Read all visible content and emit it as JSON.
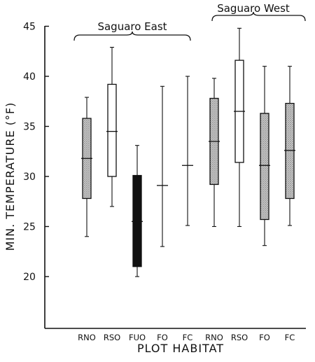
{
  "chart_data": {
    "type": "boxplot",
    "title": "",
    "xlabel": "PLOT  HABITAT",
    "ylabel": "MIN. TEMPERATURE (°F)",
    "ylim": [
      13,
      45
    ],
    "yticks": [
      20,
      25,
      30,
      35,
      40,
      45
    ],
    "grid": false,
    "groups": [
      {
        "label": "Saguaro   East",
        "categories": [
          0,
          4
        ]
      },
      {
        "label": "Saguaro West",
        "categories": [
          5,
          8
        ]
      }
    ],
    "categories": [
      "RNO",
      "RSO",
      "FUO",
      "FO",
      "FC",
      "RNO",
      "RSO",
      "FO",
      "FC"
    ],
    "series": [
      {
        "category": "RNO",
        "min": 24.0,
        "q1": 27.8,
        "median": 31.8,
        "q3": 35.8,
        "max": 37.9,
        "fill": "stippled"
      },
      {
        "category": "RSO",
        "min": 27.0,
        "q1": 30.0,
        "median": 34.5,
        "q3": 39.2,
        "max": 42.9,
        "fill": "white"
      },
      {
        "category": "FUO",
        "min": 20.0,
        "q1": 21.0,
        "median": 25.5,
        "q3": 30.1,
        "max": 33.1,
        "fill": "black"
      },
      {
        "category": "FO",
        "min": 23.0,
        "median": 29.1,
        "max": 39.0,
        "fill": "none"
      },
      {
        "category": "FC",
        "min": 25.1,
        "median": 31.1,
        "max": 40.0,
        "fill": "none"
      },
      {
        "category": "RNO",
        "min": 25.0,
        "q1": 29.2,
        "median": 33.5,
        "q3": 37.8,
        "max": 39.8,
        "fill": "stippled"
      },
      {
        "category": "RSO",
        "min": 25.0,
        "q1": 31.4,
        "median": 36.5,
        "q3": 41.6,
        "max": 44.8,
        "fill": "white"
      },
      {
        "category": "FO",
        "min": 23.1,
        "q1": 25.7,
        "median": 31.1,
        "q3": 36.3,
        "max": 41.0,
        "fill": "stippled"
      },
      {
        "category": "FC",
        "min": 25.1,
        "q1": 27.8,
        "median": 32.6,
        "q3": 37.3,
        "max": 41.0,
        "fill": "stippled"
      }
    ],
    "colors": {
      "ink": "#111111",
      "stipple_bg": "#c9c9c9",
      "stipple_dot": "#6e6e6e",
      "background": "#ffffff"
    }
  }
}
